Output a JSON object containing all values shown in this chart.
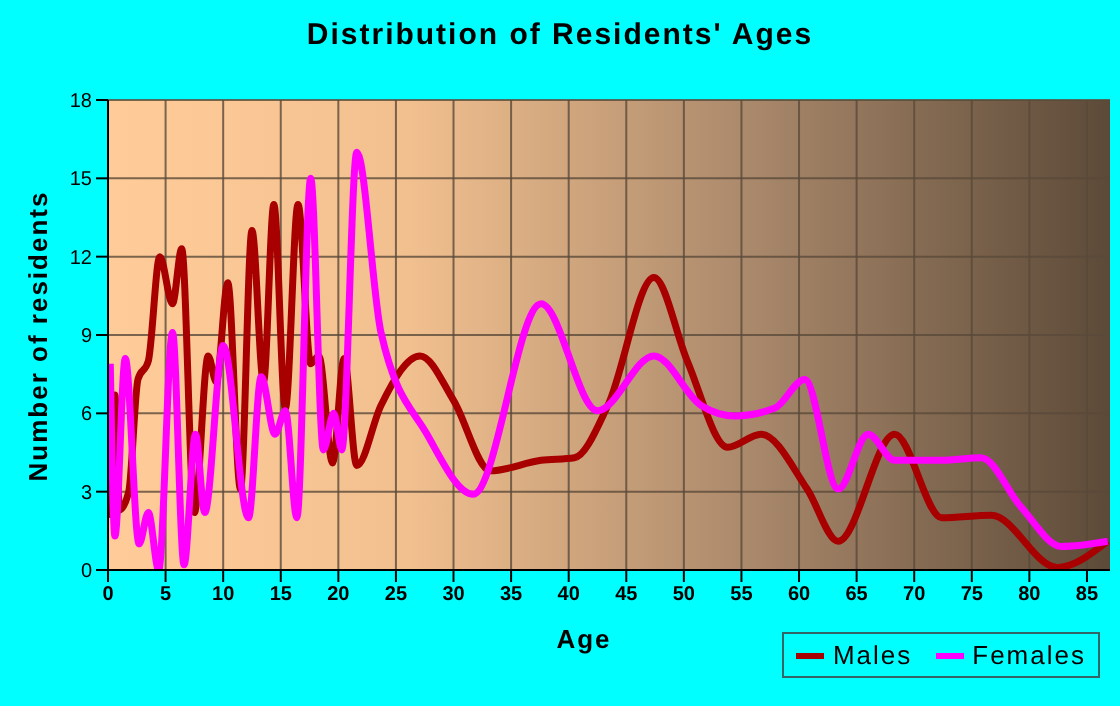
{
  "chart_data": {
    "type": "line",
    "title": "Distribution of Residents' Ages",
    "xlabel": "Age",
    "ylabel": "Number of residents",
    "xlim": [
      0,
      87
    ],
    "xticks": [
      0,
      5,
      10,
      15,
      20,
      25,
      30,
      35,
      40,
      45,
      50,
      55,
      60,
      65,
      70,
      75,
      80,
      85
    ],
    "ylim": [
      0,
      18
    ],
    "yticks": [
      0,
      3,
      6,
      9,
      12,
      15,
      18
    ],
    "grid": true,
    "legend": "bottom right",
    "marker": "none",
    "line_style": "solid",
    "series": [
      {
        "name": "Males",
        "color": "#a80000",
        "x": [
          0,
          0.6,
          1,
          1.8,
          2.6,
          3.5,
          4.5,
          5.6,
          6.4,
          7.5,
          8.7,
          9.4,
          10.4,
          11.5,
          12.5,
          13.5,
          14.4,
          15.4,
          16.5,
          17.6,
          18.3,
          19.5,
          20.5,
          21.6,
          23.7,
          27.1,
          30,
          33.2,
          37.6,
          40.5,
          43.4,
          47.4,
          50.3,
          53.8,
          56.7,
          60.7,
          63.4,
          68.3,
          72.4,
          76.7,
          82.4,
          86.8
        ],
        "values": [
          2,
          6.7,
          2.3,
          3,
          7.3,
          8,
          12,
          10.2,
          12.3,
          2.2,
          8.2,
          7.2,
          11,
          3.1,
          13,
          7.2,
          14,
          6.2,
          14,
          7.9,
          8.2,
          4.1,
          8.1,
          4,
          6.3,
          8.2,
          6.5,
          3.8,
          4.2,
          4.3,
          6.3,
          11.2,
          8,
          4.7,
          5.2,
          3.1,
          1.1,
          5.2,
          2,
          2.1,
          0.1,
          1.1
        ]
      },
      {
        "name": "Females",
        "color": "#ff00ff",
        "x": [
          0.2,
          0.6,
          1.5,
          2.7,
          3.5,
          4.4,
          5.6,
          6.6,
          7.6,
          8.4,
          10,
          12.2,
          13.3,
          14.5,
          15.4,
          16.4,
          17.6,
          18.7,
          19.6,
          20.3,
          21.6,
          23.7,
          27.7,
          31.7,
          37.6,
          42.5,
          47.4,
          51.5,
          54.4,
          57.9,
          60.5,
          63.4,
          66,
          68.3,
          72.4,
          75.8,
          79.3,
          82.8,
          86.8
        ],
        "values": [
          7.9,
          1.3,
          8.1,
          1,
          2.2,
          0,
          9.1,
          0.2,
          5.2,
          2.2,
          8.6,
          2,
          7.4,
          5.2,
          6.1,
          2,
          15,
          4.6,
          6,
          4.6,
          16,
          9.1,
          5.2,
          2.9,
          10.2,
          6.1,
          8.2,
          6.3,
          5.9,
          6.2,
          7.3,
          3.1,
          5.2,
          4.2,
          4.2,
          4.3,
          2.4,
          0.9,
          1.1
        ]
      }
    ]
  }
}
